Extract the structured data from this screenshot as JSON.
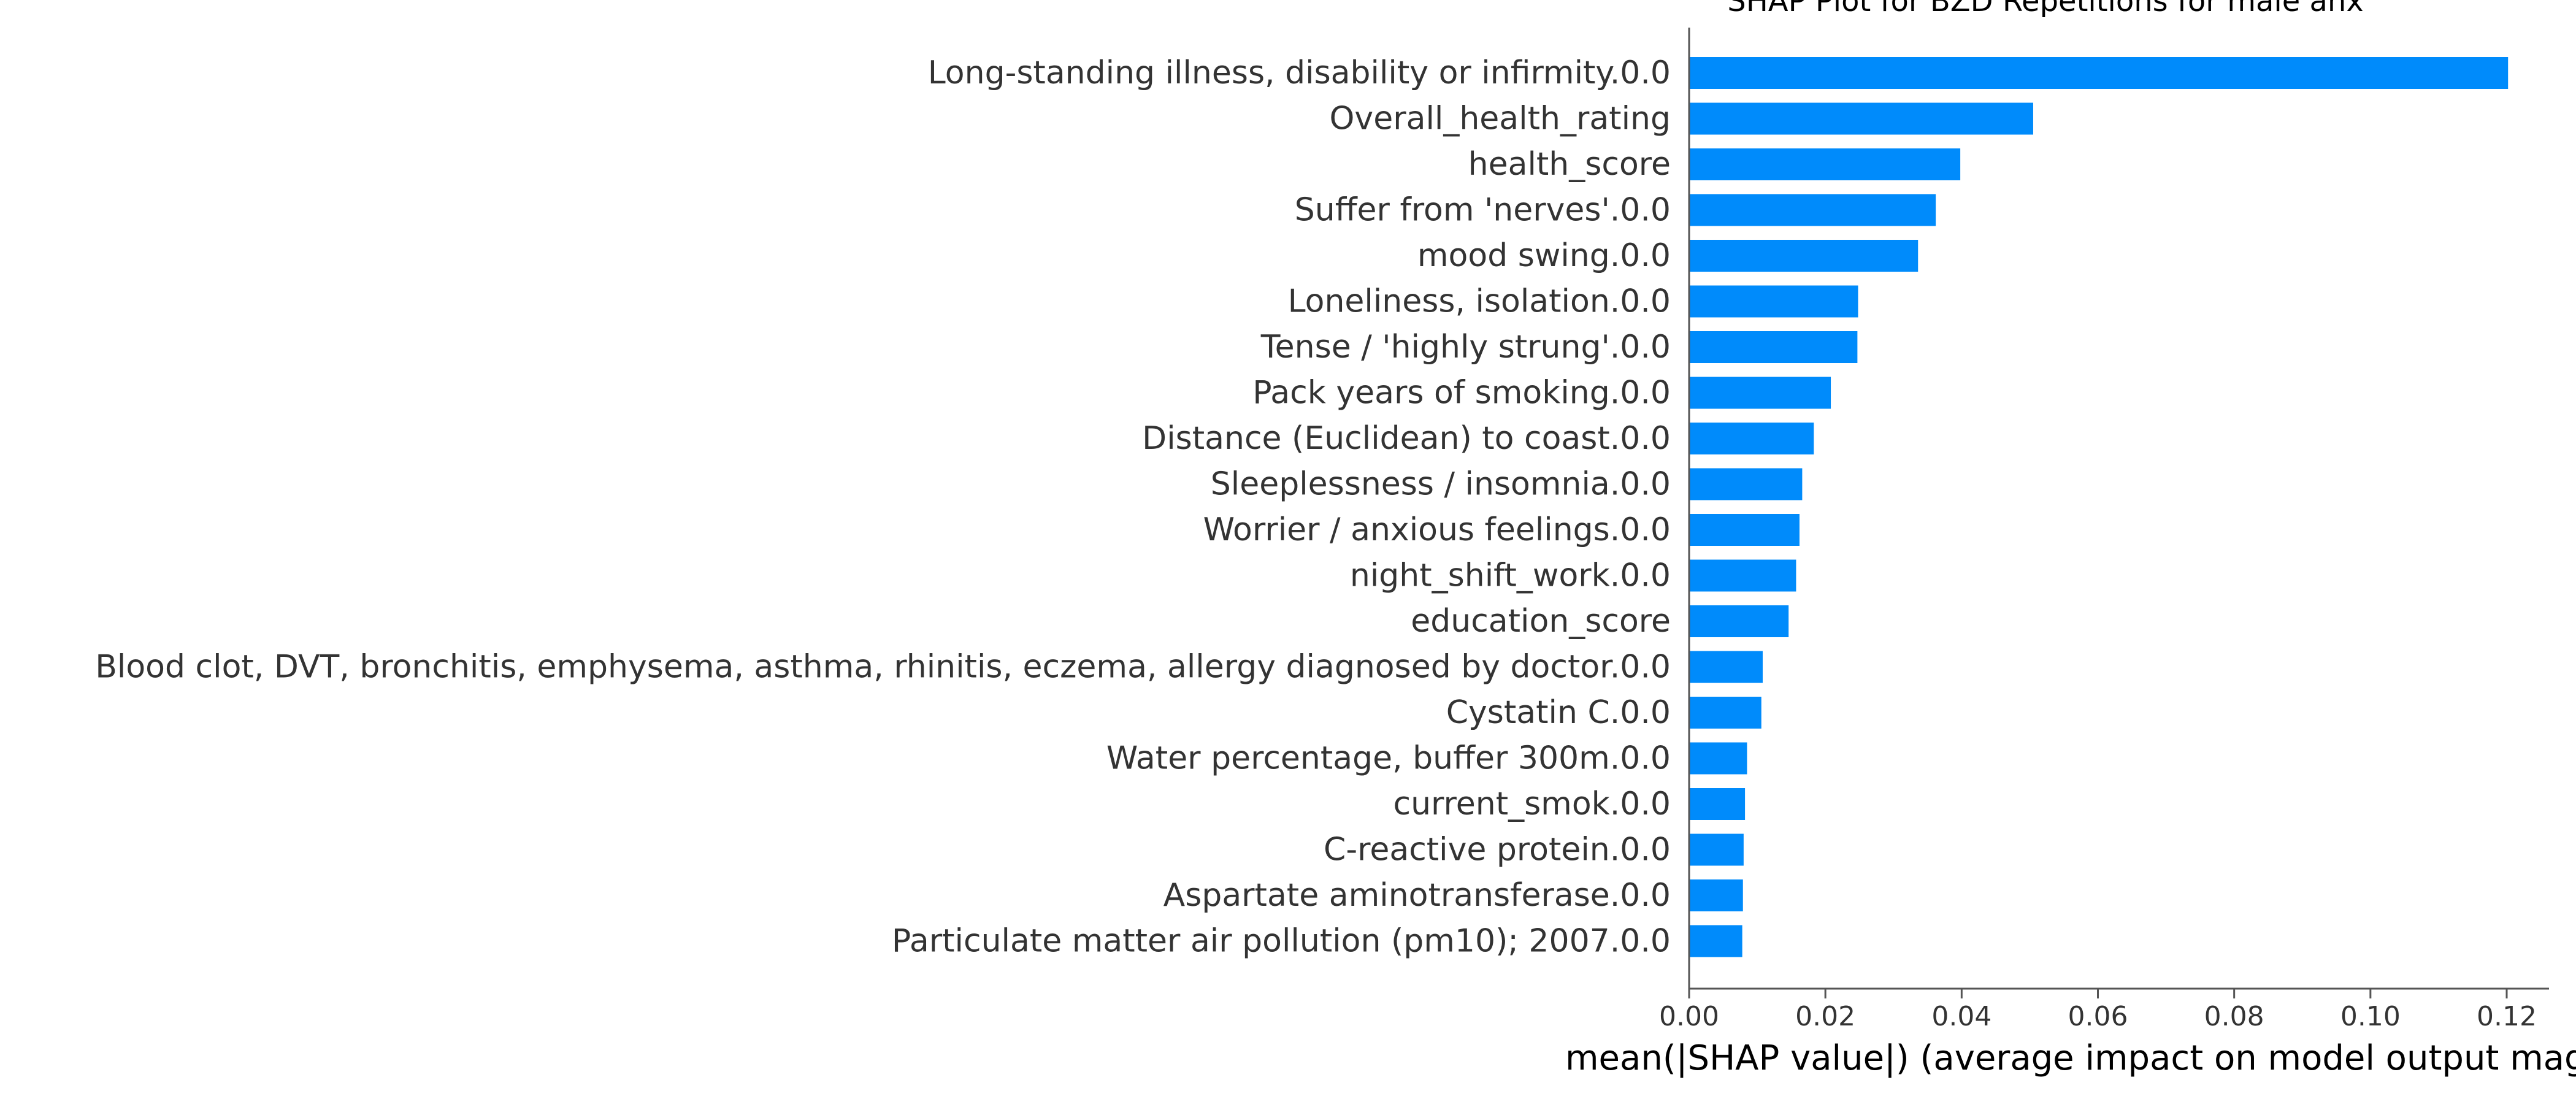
{
  "chart_data": {
    "type": "bar",
    "orientation": "horizontal",
    "title": "SHAP Plot for BZD Repetitions for male anx",
    "xlabel": "mean(|SHAP value|) (average impact on model output magn",
    "ylabel": "",
    "xlim": [
      0,
      0.126
    ],
    "xticks": [
      "0.00",
      "0.02",
      "0.04",
      "0.06",
      "0.08",
      "0.10",
      "0.12"
    ],
    "xtick_values": [
      0,
      0.02,
      0.04,
      0.06,
      0.08,
      0.1,
      0.12
    ],
    "bar_color": "#008bfb",
    "grid": false,
    "legend": "none",
    "categories": [
      "Long-standing illness, disability or infirmity.0.0",
      "Overall_health_rating",
      "health_score",
      "Suffer from 'nerves'.0.0",
      "mood swing.0.0",
      "Loneliness, isolation.0.0",
      "Tense / 'highly strung'.0.0",
      "Pack years of smoking.0.0",
      "Distance (Euclidean) to coast.0.0",
      "Sleeplessness / insomnia.0.0",
      "Worrier / anxious feelings.0.0",
      "night_shift_work.0.0",
      "education_score",
      "Blood clot, DVT, bronchitis, emphysema, asthma, rhinitis, eczema, allergy diagnosed by doctor.0.0",
      "Cystatin C.0.0",
      "Water percentage, buffer 300m.0.0",
      "current_smok.0.0",
      "C-reactive protein.0.0",
      "Aspartate aminotransferase.0.0",
      "Particulate matter air pollution (pm10); 2007.0.0"
    ],
    "values": [
      0.1202,
      0.0505,
      0.0398,
      0.0362,
      0.0336,
      0.0248,
      0.0247,
      0.0208,
      0.0183,
      0.0166,
      0.0162,
      0.0157,
      0.0146,
      0.0108,
      0.0106,
      0.0085,
      0.0082,
      0.008,
      0.0079,
      0.0078
    ]
  }
}
